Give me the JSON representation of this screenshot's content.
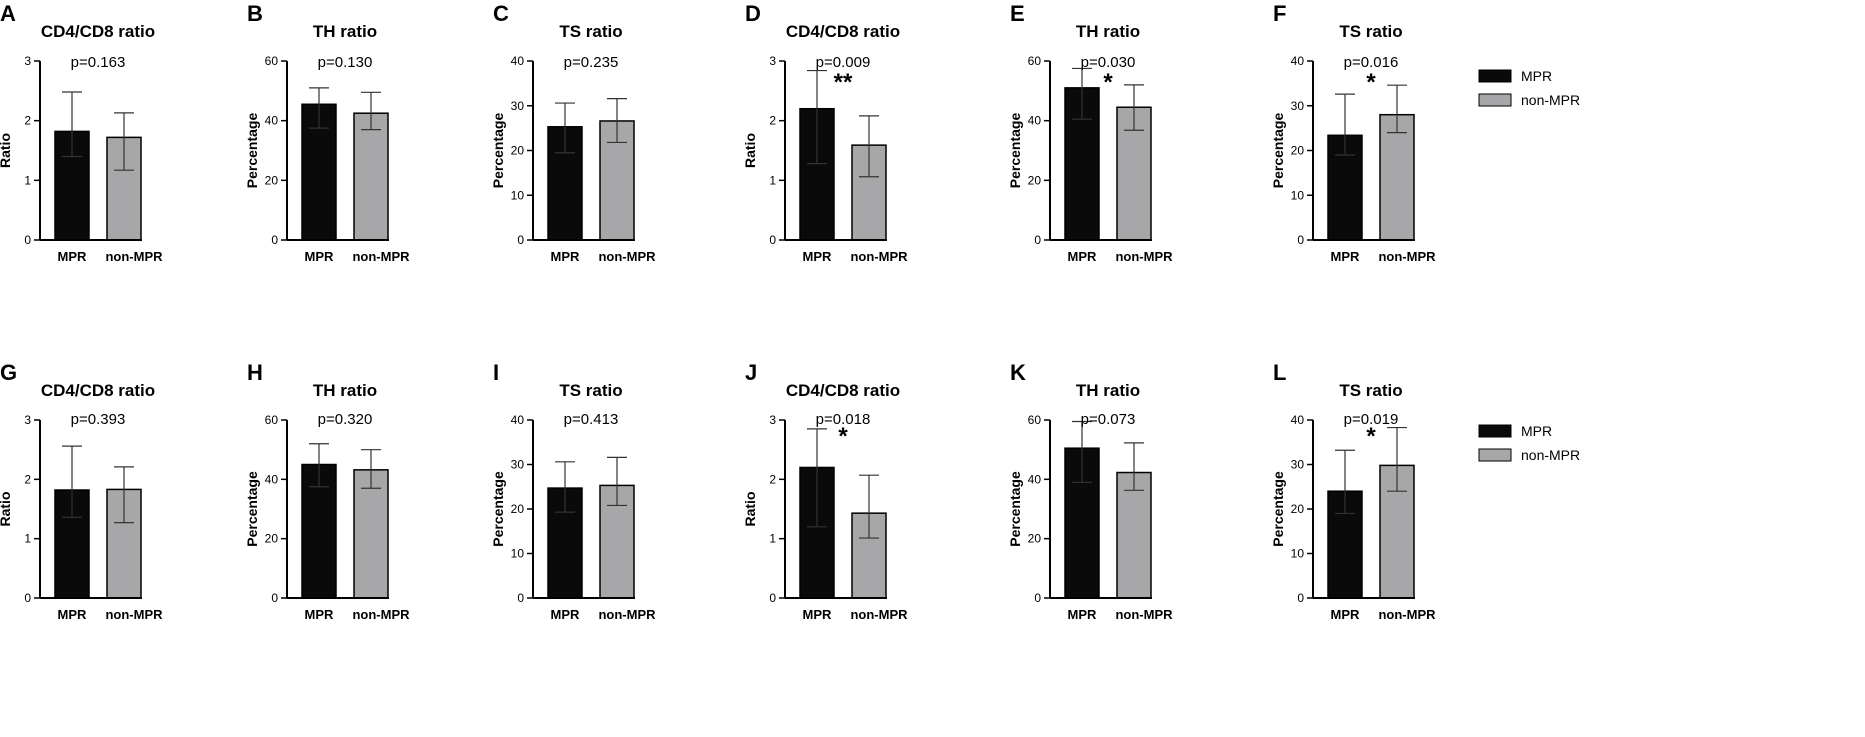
{
  "colors": {
    "mpr": "#0a0a0a",
    "non_mpr": "#a7a7aa",
    "axis": "#000000",
    "error_bar": "#333333"
  },
  "legends": [
    {
      "items": [
        {
          "label": "MPR",
          "color": "#0a0a0a"
        },
        {
          "label": "non-MPR",
          "color": "#a7a7aa"
        }
      ]
    },
    {
      "items": [
        {
          "label": "MPR",
          "color": "#0a0a0a"
        },
        {
          "label": "non-MPR",
          "color": "#a7a7aa"
        }
      ]
    }
  ],
  "chart_data": [
    {
      "panel": "A",
      "type": "bar",
      "title": "CD4/CD8 ratio",
      "ylabel": "Ratio",
      "ylim": [
        0,
        3
      ],
      "yticks": [
        0,
        1,
        2,
        3
      ],
      "categories": [
        "MPR",
        "non-MPR"
      ],
      "values": [
        1.82,
        1.72
      ],
      "error_low": [
        1.4,
        1.17
      ],
      "error_high": [
        2.48,
        2.13
      ],
      "p_value": "p=0.163",
      "significance": ""
    },
    {
      "panel": "B",
      "type": "bar",
      "title": "TH ratio",
      "ylabel": "Percentage",
      "ylim": [
        0,
        60
      ],
      "yticks": [
        0,
        20,
        40,
        60
      ],
      "categories": [
        "MPR",
        "non-MPR"
      ],
      "values": [
        45.5,
        42.5
      ],
      "error_low": [
        37.5,
        37.0
      ],
      "error_high": [
        51.0,
        49.5
      ],
      "p_value": "p=0.130",
      "significance": ""
    },
    {
      "panel": "C",
      "type": "bar",
      "title": "TS ratio",
      "ylabel": "Percentage",
      "ylim": [
        0,
        40
      ],
      "yticks": [
        0,
        10,
        20,
        30,
        40
      ],
      "categories": [
        "MPR",
        "non-MPR"
      ],
      "values": [
        25.3,
        26.6
      ],
      "error_low": [
        19.5,
        21.8
      ],
      "error_high": [
        30.6,
        31.6
      ],
      "p_value": "p=0.235",
      "significance": ""
    },
    {
      "panel": "D",
      "type": "bar",
      "title": "CD4/CD8 ratio",
      "ylabel": "Ratio",
      "ylim": [
        0,
        3
      ],
      "yticks": [
        0,
        1,
        2,
        3
      ],
      "categories": [
        "MPR",
        "non-MPR"
      ],
      "values": [
        2.2,
        1.59
      ],
      "error_low": [
        1.28,
        1.06
      ],
      "error_high": [
        2.84,
        2.08
      ],
      "p_value": "p=0.009",
      "significance": "**"
    },
    {
      "panel": "E",
      "type": "bar",
      "title": "TH ratio",
      "ylabel": "Percentage",
      "ylim": [
        0,
        60
      ],
      "yticks": [
        0,
        20,
        40,
        60
      ],
      "categories": [
        "MPR",
        "non-MPR"
      ],
      "values": [
        51.0,
        44.5
      ],
      "error_low": [
        40.5,
        36.8
      ],
      "error_high": [
        57.5,
        52.0
      ],
      "p_value": "p=0.030",
      "significance": "*"
    },
    {
      "panel": "F",
      "type": "bar",
      "title": "TS ratio",
      "ylabel": "Percentage",
      "ylim": [
        0,
        40
      ],
      "yticks": [
        0,
        10,
        20,
        30,
        40
      ],
      "categories": [
        "MPR",
        "non-MPR"
      ],
      "values": [
        23.4,
        28.0
      ],
      "error_low": [
        19.0,
        24.0
      ],
      "error_high": [
        32.6,
        34.6
      ],
      "p_value": "p=0.016",
      "significance": "*"
    },
    {
      "panel": "G",
      "type": "bar",
      "title": "CD4/CD8 ratio",
      "ylabel": "Ratio",
      "ylim": [
        0,
        3
      ],
      "yticks": [
        0,
        1,
        2,
        3
      ],
      "categories": [
        "MPR",
        "non-MPR"
      ],
      "values": [
        1.82,
        1.83
      ],
      "error_low": [
        1.36,
        1.27
      ],
      "error_high": [
        2.56,
        2.21
      ],
      "p_value": "p=0.393",
      "significance": ""
    },
    {
      "panel": "H",
      "type": "bar",
      "title": "TH ratio",
      "ylabel": "Percentage",
      "ylim": [
        0,
        60
      ],
      "yticks": [
        0,
        20,
        40,
        60
      ],
      "categories": [
        "MPR",
        "non-MPR"
      ],
      "values": [
        45.0,
        43.2
      ],
      "error_low": [
        37.5,
        37.0
      ],
      "error_high": [
        52.0,
        50.0
      ],
      "p_value": "p=0.320",
      "significance": ""
    },
    {
      "panel": "I",
      "type": "bar",
      "title": "TS ratio",
      "ylabel": "Percentage",
      "ylim": [
        0,
        40
      ],
      "yticks": [
        0,
        10,
        20,
        30,
        40
      ],
      "categories": [
        "MPR",
        "non-MPR"
      ],
      "values": [
        24.7,
        25.3
      ],
      "error_low": [
        19.3,
        20.8
      ],
      "error_high": [
        30.6,
        31.6
      ],
      "p_value": "p=0.413",
      "significance": ""
    },
    {
      "panel": "J",
      "type": "bar",
      "title": "CD4/CD8 ratio",
      "ylabel": "Ratio",
      "ylim": [
        0,
        3
      ],
      "yticks": [
        0,
        1,
        2,
        3
      ],
      "categories": [
        "MPR",
        "non-MPR"
      ],
      "values": [
        2.2,
        1.43
      ],
      "error_low": [
        1.2,
        1.01
      ],
      "error_high": [
        2.85,
        2.07
      ],
      "p_value": "p=0.018",
      "significance": "*"
    },
    {
      "panel": "K",
      "type": "bar",
      "title": "TH ratio",
      "ylabel": "Percentage",
      "ylim": [
        0,
        60
      ],
      "yticks": [
        0,
        20,
        40,
        60
      ],
      "categories": [
        "MPR",
        "non-MPR"
      ],
      "values": [
        50.5,
        42.3
      ],
      "error_low": [
        39.0,
        36.3
      ],
      "error_high": [
        59.5,
        52.3
      ],
      "p_value": "p=0.073",
      "significance": ""
    },
    {
      "panel": "L",
      "type": "bar",
      "title": "TS ratio",
      "ylabel": "Percentage",
      "ylim": [
        0,
        40
      ],
      "yticks": [
        0,
        10,
        20,
        30,
        40
      ],
      "categories": [
        "MPR",
        "non-MPR"
      ],
      "values": [
        24.0,
        29.8
      ],
      "error_low": [
        19.0,
        24.0
      ],
      "error_high": [
        33.2,
        38.3
      ],
      "p_value": "p=0.019",
      "significance": "*"
    }
  ]
}
